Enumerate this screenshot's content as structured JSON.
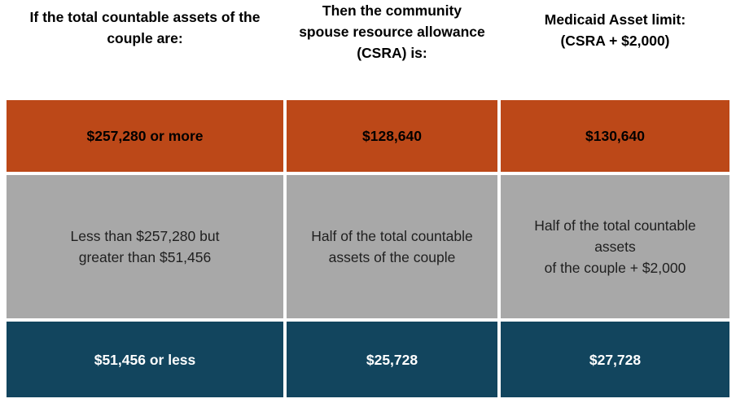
{
  "colors": {
    "row_high_bg": "#BC4818",
    "row_mid_bg": "#A8A8A8",
    "row_low_bg": "#12455E",
    "header_text": "#000000",
    "row_high_text": "#000000",
    "row_mid_text": "#1F1F1F",
    "row_low_text": "#FFFFFF",
    "divider": "#FFFFFF"
  },
  "table": {
    "columns": [
      {
        "header": "If the total countable assets of the\ncouple are:"
      },
      {
        "header": "Then the community\nspouse resource allowance\n(CSRA) is:"
      },
      {
        "header": "Medicaid Asset limit:\n(CSRA + $2,000)"
      }
    ],
    "rows": [
      {
        "tier": "highest",
        "cells": [
          "$257,280 or more",
          "$128,640",
          "$130,640"
        ]
      },
      {
        "tier": "middle",
        "cells": [
          "Less than $257,280 but\ngreater than $51,456",
          "Half of the total countable\nassets of the couple",
          "Half of the total countable\nassets\nof the couple + $2,000"
        ]
      },
      {
        "tier": "lowest",
        "cells": [
          "$51,456 or less",
          "$25,728",
          "$27,728"
        ]
      }
    ]
  },
  "chart_data": {
    "type": "table",
    "title": "",
    "columns": [
      "If the total countable assets of the couple are:",
      "Then the community spouse resource allowance (CSRA) is:",
      "Medicaid Asset limit: (CSRA + $2,000)"
    ],
    "rows": [
      [
        "$257,280 or more",
        "$128,640",
        "$130,640"
      ],
      [
        "Less than $257,280 but greater than $51,456",
        "Half of the total countable assets of the couple",
        "Half of the total countable assets of the couple + $2,000"
      ],
      [
        "$51,456 or less",
        "$25,728",
        "$27,728"
      ]
    ],
    "row_values_numeric": {
      "csra_max": 128640,
      "asset_limit_max": 130640,
      "threshold_upper": 257280,
      "threshold_lower": 51456,
      "csra_min": 25728,
      "asset_limit_min": 27728
    },
    "layout": "three-column matrix, rows color-coded: orange (highest tier), gray (middle tier), dark blue (lowest tier)"
  }
}
